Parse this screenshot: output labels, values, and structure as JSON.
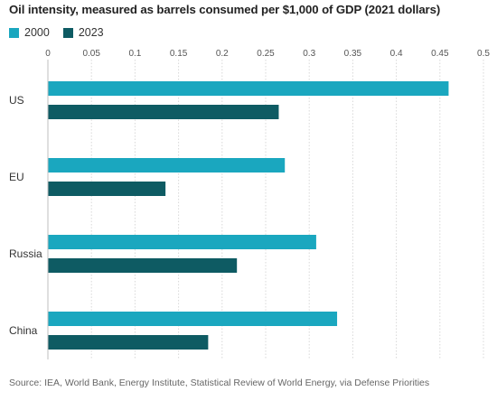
{
  "chart_data": {
    "type": "bar",
    "orientation": "horizontal",
    "title": "Oil intensity, measured as barrels consumed per $1,000 of GDP (2021 dollars)",
    "categories": [
      "US",
      "EU",
      "Russia",
      "China"
    ],
    "series": [
      {
        "name": "2000",
        "color": "#1aa7bf",
        "values": [
          0.46,
          0.272,
          0.308,
          0.332
        ]
      },
      {
        "name": "2023",
        "color": "#0e5b63",
        "values": [
          0.265,
          0.135,
          0.217,
          0.184
        ]
      }
    ],
    "xlim": [
      0,
      0.5
    ],
    "xticks": [
      "0",
      "0.05",
      "0.1",
      "0.15",
      "0.2",
      "0.25",
      "0.3",
      "0.35",
      "0.4",
      "0.45",
      "0.5"
    ],
    "grid": true,
    "legend_position": "top-left",
    "source": "Source: IEA, World Bank, Energy Institute, Statistical Review of World Energy, via Defense Priorities"
  }
}
